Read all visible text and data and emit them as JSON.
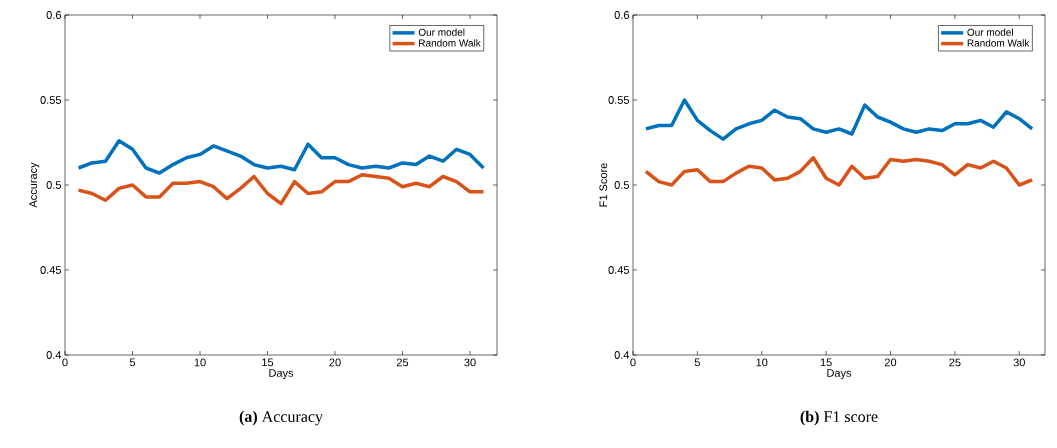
{
  "chart_data": [
    {
      "type": "line",
      "xlabel": "Days",
      "ylabel": "Accuracy",
      "xlim": [
        0,
        32
      ],
      "ylim": [
        0.4,
        0.6
      ],
      "xticks": [
        0,
        5,
        10,
        15,
        20,
        25,
        30
      ],
      "yticks": [
        0.4,
        0.45,
        0.5,
        0.55,
        0.6
      ],
      "legend": "top right",
      "annotations": [
        "**(a)** Accuracy"
      ],
      "x": [
        1,
        2,
        3,
        4,
        5,
        6,
        7,
        8,
        9,
        10,
        11,
        12,
        13,
        14,
        15,
        16,
        17,
        18,
        19,
        20,
        21,
        22,
        23,
        24,
        25,
        26,
        27,
        28,
        29,
        30,
        31
      ],
      "series": [
        {
          "name": "Our model",
          "color": "#0072bd",
          "values": [
            0.51,
            0.513,
            0.514,
            0.526,
            0.521,
            0.51,
            0.507,
            0.512,
            0.516,
            0.518,
            0.523,
            0.52,
            0.517,
            0.512,
            0.51,
            0.511,
            0.509,
            0.524,
            0.516,
            0.516,
            0.512,
            0.51,
            0.511,
            0.51,
            0.513,
            0.512,
            0.517,
            0.514,
            0.521,
            0.518,
            0.51
          ]
        },
        {
          "name": "Random Walk",
          "color": "#d95319",
          "values": [
            0.497,
            0.495,
            0.491,
            0.498,
            0.5,
            0.493,
            0.493,
            0.501,
            0.501,
            0.502,
            0.499,
            0.492,
            0.498,
            0.505,
            0.495,
            0.489,
            0.502,
            0.495,
            0.496,
            0.502,
            0.502,
            0.506,
            0.505,
            0.504,
            0.499,
            0.501,
            0.499,
            0.505,
            0.502,
            0.496,
            0.496
          ]
        }
      ]
    },
    {
      "type": "line",
      "xlabel": "Days",
      "ylabel": "F1 Score",
      "xlim": [
        0,
        32
      ],
      "ylim": [
        0.4,
        0.6
      ],
      "xticks": [
        0,
        5,
        10,
        15,
        20,
        25,
        30
      ],
      "yticks": [
        0.4,
        0.45,
        0.5,
        0.55,
        0.6
      ],
      "legend": "top right",
      "annotations": [
        "**(b)** F1 score"
      ],
      "x": [
        1,
        2,
        3,
        4,
        5,
        6,
        7,
        8,
        9,
        10,
        11,
        12,
        13,
        14,
        15,
        16,
        17,
        18,
        19,
        20,
        21,
        22,
        23,
        24,
        25,
        26,
        27,
        28,
        29,
        30,
        31
      ],
      "series": [
        {
          "name": "Our model",
          "color": "#0072bd",
          "values": [
            0.533,
            0.535,
            0.535,
            0.55,
            0.538,
            0.532,
            0.527,
            0.533,
            0.536,
            0.538,
            0.544,
            0.54,
            0.539,
            0.533,
            0.531,
            0.533,
            0.53,
            0.547,
            0.54,
            0.537,
            0.533,
            0.531,
            0.533,
            0.532,
            0.536,
            0.536,
            0.538,
            0.534,
            0.543,
            0.539,
            0.533
          ]
        },
        {
          "name": "Random Walk",
          "color": "#d95319",
          "values": [
            0.508,
            0.502,
            0.5,
            0.508,
            0.509,
            0.502,
            0.502,
            0.507,
            0.511,
            0.51,
            0.503,
            0.504,
            0.508,
            0.516,
            0.504,
            0.5,
            0.511,
            0.504,
            0.505,
            0.515,
            0.514,
            0.515,
            0.514,
            0.512,
            0.506,
            0.512,
            0.51,
            0.514,
            0.51,
            0.5,
            0.503
          ]
        }
      ]
    }
  ]
}
